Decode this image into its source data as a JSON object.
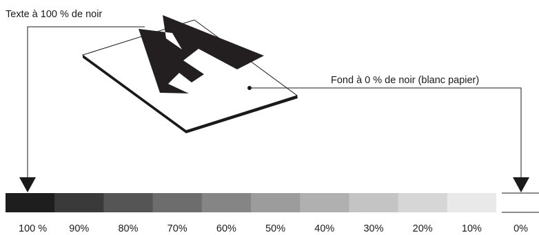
{
  "labels": {
    "text_label": "Texte à 100 % de noir",
    "background_label": "Fond à 0 % de noir (blanc papier)"
  },
  "letter": "A",
  "scale": {
    "swatches": [
      {
        "label": "100 %",
        "black_percent": 100,
        "color": "#1e1e1e"
      },
      {
        "label": "90%",
        "black_percent": 90,
        "color": "#3a3a3a"
      },
      {
        "label": "80%",
        "black_percent": 80,
        "color": "#555555"
      },
      {
        "label": "70%",
        "black_percent": 70,
        "color": "#6d6d6d"
      },
      {
        "label": "60%",
        "black_percent": 60,
        "color": "#858585"
      },
      {
        "label": "50%",
        "black_percent": 50,
        "color": "#9c9c9c"
      },
      {
        "label": "40%",
        "black_percent": 40,
        "color": "#b0b0b0"
      },
      {
        "label": "30%",
        "black_percent": 30,
        "color": "#c4c4c4"
      },
      {
        "label": "20%",
        "black_percent": 20,
        "color": "#d6d6d6"
      },
      {
        "label": "10%",
        "black_percent": 10,
        "color": "#e9e9e9"
      },
      {
        "label": "0%",
        "black_percent": 0,
        "color": "#ffffff"
      }
    ]
  }
}
